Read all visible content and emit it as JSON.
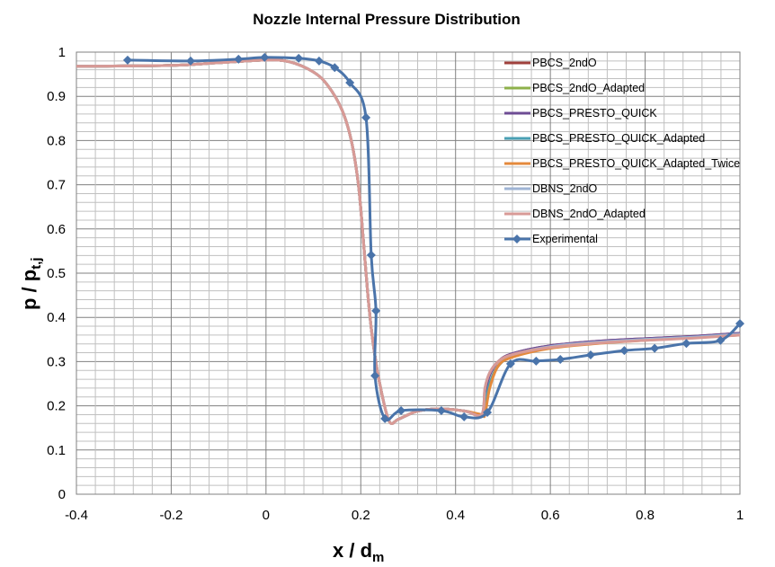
{
  "chart_data": {
    "type": "line",
    "title": "Nozzle Internal Pressure Distribution",
    "xlabel": "x / d",
    "xlabel_sub": "m",
    "ylabel": "p / p",
    "ylabel_sub": "t,j",
    "xlim": [
      -0.4,
      1
    ],
    "ylim": [
      0,
      1
    ],
    "xticks": [
      "-0.4",
      "-0.2",
      "0",
      "0.2",
      "0.4",
      "0.6",
      "0.8",
      "1"
    ],
    "yticks": [
      "0",
      "0.1",
      "0.2",
      "0.3",
      "0.4",
      "0.5",
      "0.6",
      "0.7",
      "0.8",
      "0.9",
      "1"
    ],
    "grid": true,
    "legend_position": "top-right",
    "sim_x": [
      -0.4,
      -0.2,
      -0.1,
      0,
      0.05,
      0.1,
      0.13,
      0.16,
      0.18,
      0.195,
      0.205,
      0.215,
      0.225,
      0.24,
      0.26,
      0.28,
      0.32,
      0.37,
      0.42,
      0.455,
      0.462,
      0.472,
      0.49,
      0.52,
      0.6,
      0.7,
      0.8,
      0.9,
      1.0
    ],
    "series": [
      {
        "name": "PBCS_2ndO",
        "color": "#a0403c",
        "y": [
          0.968,
          0.97,
          0.976,
          0.982,
          0.978,
          0.955,
          0.925,
          0.87,
          0.8,
          0.7,
          0.58,
          0.45,
          0.35,
          0.25,
          0.165,
          0.17,
          0.188,
          0.193,
          0.188,
          0.18,
          0.23,
          0.27,
          0.3,
          0.318,
          0.336,
          0.346,
          0.352,
          0.357,
          0.364
        ]
      },
      {
        "name": "PBCS_2ndO_Adapted",
        "color": "#8db04a",
        "y": [
          0.968,
          0.97,
          0.976,
          0.982,
          0.978,
          0.955,
          0.925,
          0.87,
          0.8,
          0.7,
          0.58,
          0.45,
          0.35,
          0.25,
          0.165,
          0.17,
          0.188,
          0.193,
          0.188,
          0.18,
          0.2,
          0.25,
          0.29,
          0.312,
          0.332,
          0.343,
          0.35,
          0.355,
          0.362
        ]
      },
      {
        "name": "PBCS_PRESTO_QUICK",
        "color": "#6e4c94",
        "y": [
          0.968,
          0.97,
          0.976,
          0.982,
          0.978,
          0.955,
          0.925,
          0.87,
          0.8,
          0.7,
          0.58,
          0.45,
          0.35,
          0.25,
          0.165,
          0.17,
          0.188,
          0.193,
          0.188,
          0.18,
          0.23,
          0.27,
          0.3,
          0.318,
          0.336,
          0.346,
          0.352,
          0.357,
          0.364
        ]
      },
      {
        "name": "PBCS_PRESTO_QUICK_Adapted",
        "color": "#4aa0b4",
        "y": [
          0.968,
          0.97,
          0.976,
          0.982,
          0.978,
          0.955,
          0.925,
          0.87,
          0.8,
          0.7,
          0.58,
          0.45,
          0.35,
          0.25,
          0.165,
          0.17,
          0.188,
          0.193,
          0.188,
          0.18,
          0.2,
          0.25,
          0.29,
          0.312,
          0.332,
          0.343,
          0.35,
          0.355,
          0.362
        ]
      },
      {
        "name": "PBCS_PRESTO_QUICK_Adapted_Twice",
        "color": "#e48a3c",
        "y": [
          0.968,
          0.97,
          0.976,
          0.982,
          0.978,
          0.955,
          0.925,
          0.87,
          0.8,
          0.7,
          0.58,
          0.45,
          0.35,
          0.25,
          0.165,
          0.17,
          0.188,
          0.193,
          0.188,
          0.18,
          0.18,
          0.24,
          0.29,
          0.31,
          0.33,
          0.341,
          0.348,
          0.354,
          0.36
        ]
      },
      {
        "name": "DBNS_2ndO",
        "color": "#9fb4d4",
        "y": [
          0.968,
          0.97,
          0.976,
          0.982,
          0.978,
          0.955,
          0.925,
          0.87,
          0.8,
          0.7,
          0.58,
          0.45,
          0.35,
          0.25,
          0.165,
          0.17,
          0.188,
          0.193,
          0.188,
          0.18,
          0.24,
          0.275,
          0.3,
          0.316,
          0.334,
          0.344,
          0.35,
          0.355,
          0.362
        ]
      },
      {
        "name": "DBNS_2ndO_Adapted",
        "color": "#d89a96",
        "y": [
          0.968,
          0.97,
          0.976,
          0.982,
          0.978,
          0.955,
          0.925,
          0.87,
          0.8,
          0.7,
          0.58,
          0.45,
          0.35,
          0.25,
          0.165,
          0.17,
          0.188,
          0.193,
          0.188,
          0.18,
          0.24,
          0.275,
          0.3,
          0.316,
          0.332,
          0.342,
          0.348,
          0.353,
          0.36
        ]
      }
    ],
    "experimental": {
      "name": "Experimental",
      "color": "#4a74aa",
      "x": [
        -0.292,
        -0.159,
        -0.058,
        -0.003,
        0.069,
        0.112,
        0.145,
        0.177,
        0.211,
        0.222,
        0.232,
        0.23,
        0.251,
        0.285,
        0.37,
        0.418,
        0.467,
        0.516,
        0.57,
        0.621,
        0.685,
        0.756,
        0.82,
        0.887,
        0.959,
        1.0
      ],
      "y": [
        0.982,
        0.98,
        0.984,
        0.988,
        0.986,
        0.98,
        0.965,
        0.931,
        0.852,
        0.541,
        0.415,
        0.268,
        0.171,
        0.189,
        0.189,
        0.175,
        0.185,
        0.295,
        0.301,
        0.305,
        0.315,
        0.325,
        0.33,
        0.341,
        0.348,
        0.386
      ]
    }
  }
}
